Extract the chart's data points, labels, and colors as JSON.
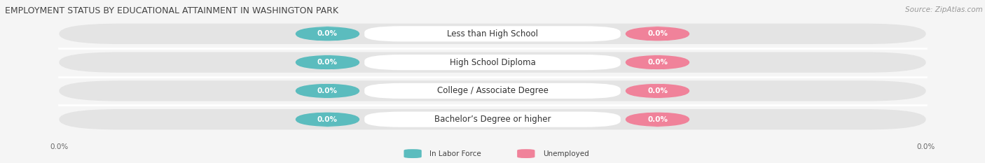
{
  "title": "EMPLOYMENT STATUS BY EDUCATIONAL ATTAINMENT IN WASHINGTON PARK",
  "source_text": "Source: ZipAtlas.com",
  "categories": [
    "Less than High School",
    "High School Diploma",
    "College / Associate Degree",
    "Bachelor’s Degree or higher"
  ],
  "in_labor_force": [
    0.0,
    0.0,
    0.0,
    0.0
  ],
  "unemployed": [
    0.0,
    0.0,
    0.0,
    0.0
  ],
  "labor_force_color": "#5bbcbe",
  "unemployed_color": "#f0829a",
  "bar_bg_color": "#e4e4e4",
  "row_sep_color": "#ffffff",
  "legend_labor": "In Labor Force",
  "legend_unemployed": "Unemployed",
  "title_fontsize": 9,
  "source_fontsize": 7.5,
  "label_fontsize": 7.5,
  "category_fontsize": 8.5,
  "background_color": "#f5f5f5"
}
